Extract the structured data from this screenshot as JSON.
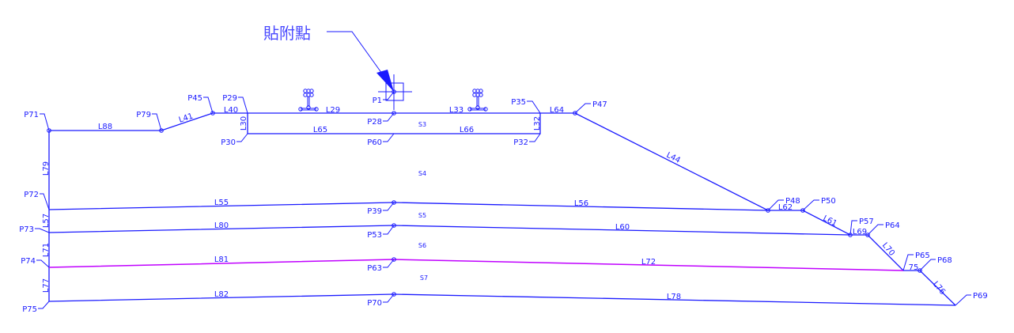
{
  "annotation": {
    "label": "貼附點"
  },
  "colors": {
    "line": "#1a1aff",
    "highlight_line": "#c000ff",
    "annotation": "#4a4aff"
  },
  "points": {
    "P1": "P1",
    "P28": "P28",
    "P29": "P29",
    "P30": "P30",
    "P32": "P32",
    "P35": "P35",
    "P39": "P39",
    "P45": "P45",
    "P47": "P47",
    "P48": "P48",
    "P50": "P50",
    "P53": "P53",
    "P57": "P57",
    "P60": "P60",
    "P63": "P63",
    "P64": "P64",
    "P65": "P65",
    "P68": "P68",
    "P69": "P69",
    "P70": "P70",
    "P71": "P71",
    "P72": "P72",
    "P73": "P73",
    "P74": "P74",
    "P75": "P75",
    "P79": "P79"
  },
  "lines": {
    "L29": "L29",
    "L30": "L30",
    "L32": "L32",
    "L33": "L33",
    "L40": "L40",
    "L41": "L41",
    "L44": "L44",
    "L55": "L55",
    "L56": "L56",
    "L57": "L57",
    "L60": "L60",
    "L61": "L61",
    "L62": "L62",
    "L64": "L64",
    "L65": "L65",
    "L66": "L66",
    "L69": "L69",
    "L70": "L70",
    "L71": "L71",
    "L72": "L72",
    "L75": "75",
    "L76": "L76",
    "L77": "L77",
    "L78": "L78",
    "L79": "L79",
    "L80": "L80",
    "L81": "L81",
    "L82": "L82",
    "L88": "L88"
  },
  "regions": {
    "S3": "S3",
    "S4": "S4",
    "S5": "S5",
    "S6": "S6",
    "S7": "S7"
  }
}
